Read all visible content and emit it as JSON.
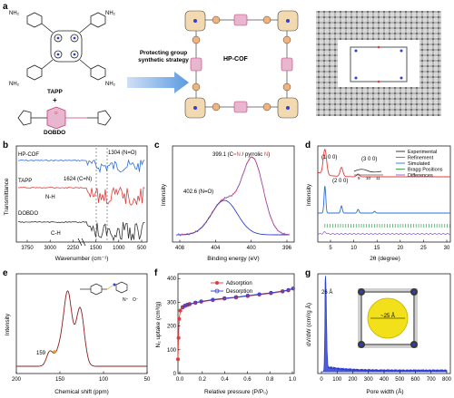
{
  "panels": {
    "a": {
      "letter": "a",
      "tapp_label": "TAPP",
      "plus": "+",
      "dobdo_label": "DOBDO",
      "arrow_text_line1": "Protecting group",
      "arrow_text_line2": "synthetic strategy",
      "cof_label": "HP-COF",
      "nh2": "NH₂",
      "o": "O"
    },
    "b": {
      "letter": "b",
      "ylabel": "Transmittance",
      "xlabel": "Wavenumber (cm⁻¹)",
      "xticks": [
        "3750",
        "3000",
        "2250",
        "1500",
        "1000",
        "500"
      ],
      "labels": {
        "hpcof": "HP-COF",
        "tapp": "TAPP",
        "dobdo": "DOBDO",
        "peak_no": "1304 (N=O)",
        "peak_cn": "1624 (C=N)",
        "nh": "N-H",
        "ch": "C-H"
      },
      "colors": {
        "hpcof": "#2f6fd6",
        "tapp": "#e03c3c",
        "dobdo": "#333333"
      }
    },
    "c": {
      "letter": "c",
      "ylabel": "Intensity",
      "xlabel": "Binding energy (eV)",
      "xticks": [
        "408",
        "404",
        "400",
        "396"
      ],
      "peak1_label": "402.6 (N=O)",
      "peak2_prefix": "399.1 (C",
      "peak2_eq": "=",
      "peak2_n": "N",
      "peak2_mid": " / pyrrolic ",
      "peak2_n2": "N",
      "peak2_close": ")"
    },
    "d": {
      "letter": "d",
      "ylabel": "Intensity",
      "xlabel": "2θ (degree)",
      "xticks": [
        "5",
        "10",
        "15",
        "20",
        "25",
        "30"
      ],
      "peak_100": "(1 0 0)",
      "peak_200": "(2 0 0)",
      "peak_300": "(3 0 0)",
      "inset_ticks": [
        "9",
        "10",
        "11"
      ],
      "legend": [
        {
          "name": "Experimental",
          "color": "#222222"
        },
        {
          "name": "Refinement",
          "color": "#e03c3c"
        },
        {
          "name": "Simulated",
          "color": "#2f6fd6"
        },
        {
          "name": "Bragg Positions",
          "color": "#2aa14a"
        },
        {
          "name": "Differences",
          "color": "#8a5ad6"
        }
      ]
    },
    "e": {
      "letter": "e",
      "ylabel": "Intensity",
      "xlabel": "Chemical shift (ppm)",
      "xticks": [
        "200",
        "150",
        "100",
        "50"
      ],
      "peak_label": "159",
      "n_plus": "N⁺",
      "o_minus": "O⁻"
    },
    "f": {
      "letter": "f",
      "ylabel": "N₂ uptake (cm³/g)",
      "xlabel": "Relative pressure (P/P₀)",
      "xticks": [
        "0.0",
        "0.2",
        "0.4",
        "0.6",
        "0.8",
        "1.0"
      ],
      "yticks": [
        "0",
        "100",
        "200",
        "300",
        "400"
      ],
      "legend_adsorption": "Adsorption",
      "legend_desorption": "Desorption"
    },
    "g": {
      "letter": "g",
      "ylabel": "dV/dW (cm³/g Å)",
      "xlabel": "Pore width (Å)",
      "xticks": [
        "0",
        "100",
        "200",
        "300",
        "400",
        "500",
        "600",
        "700",
        "800"
      ],
      "peak_label": "26 Å",
      "inset_label": "~25 Å"
    }
  },
  "chart_data": [
    {
      "type": "line",
      "panel": "f",
      "xlabel": "Relative pressure (P/P₀)",
      "ylabel": "N₂ uptake (cm³/g)",
      "xlim": [
        0,
        1.0
      ],
      "ylim": [
        0,
        420
      ],
      "series": [
        {
          "name": "Adsorption",
          "color": "#e03c3c",
          "x": [
            0.0,
            0.005,
            0.01,
            0.02,
            0.04,
            0.06,
            0.08,
            0.1,
            0.15,
            0.2,
            0.3,
            0.4,
            0.5,
            0.6,
            0.7,
            0.8,
            0.9,
            0.95,
            0.99
          ],
          "y": [
            60,
            150,
            230,
            265,
            278,
            284,
            288,
            291,
            297,
            302,
            309,
            315,
            320,
            326,
            332,
            338,
            345,
            350,
            358
          ]
        },
        {
          "name": "Desorption",
          "color": "#2f3fd6",
          "x": [
            0.99,
            0.95,
            0.9,
            0.8,
            0.7,
            0.6,
            0.5,
            0.4,
            0.3,
            0.2,
            0.15,
            0.1,
            0.08,
            0.06,
            0.04
          ],
          "y": [
            358,
            352,
            347,
            340,
            334,
            328,
            322,
            317,
            311,
            304,
            299,
            293,
            290,
            286,
            280
          ]
        }
      ]
    },
    {
      "type": "line",
      "panel": "g",
      "xlabel": "Pore width (Å)",
      "ylabel": "dV/dW (cm³/g Å)",
      "xlim": [
        0,
        800
      ],
      "series": [
        {
          "name": "",
          "color": "#2f3fd6",
          "x": [
            0,
            10,
            20,
            24,
            26,
            28,
            32,
            40,
            60,
            100,
            200,
            300,
            400,
            500,
            600,
            700,
            800
          ],
          "y": [
            0,
            0.05,
            0.3,
            0.8,
            1.0,
            0.7,
            0.3,
            0.12,
            0.05,
            0.03,
            0.02,
            0.02,
            0.015,
            0.015,
            0.012,
            0.01,
            0.01
          ]
        }
      ]
    },
    {
      "type": "line",
      "panel": "c",
      "xlabel": "Binding energy (eV)",
      "ylabel": "Intensity",
      "xlim": [
        409,
        394
      ],
      "peaks": [
        {
          "center": 402.6,
          "label": "402.6 (N=O)"
        },
        {
          "center": 399.1,
          "label": "399.1 (C=N / pyrrolic N)"
        }
      ]
    },
    {
      "type": "line",
      "panel": "d",
      "xlabel": "2θ (degree)",
      "ylabel": "Intensity",
      "xlim": [
        2,
        30
      ],
      "peaks": [
        {
          "x": 3.5,
          "label": "(1 0 0)"
        },
        {
          "x": 7.0,
          "label": "(2 0 0)"
        },
        {
          "x": 10.5,
          "label": "(3 0 0)"
        }
      ]
    }
  ]
}
